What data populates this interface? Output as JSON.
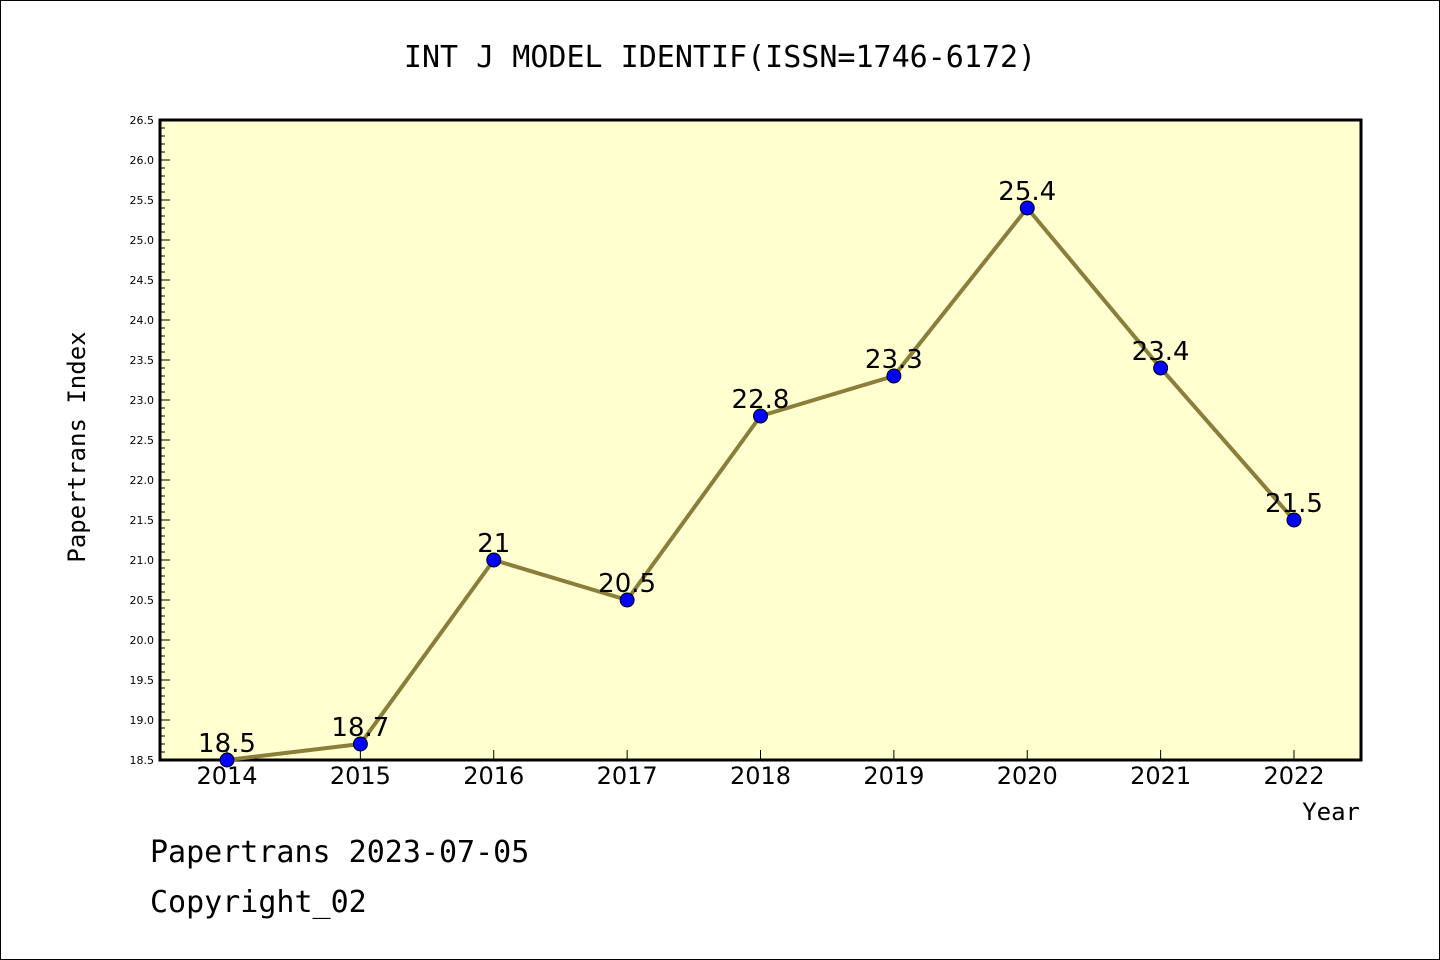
{
  "chart_data": {
    "type": "line",
    "title": "INT J MODEL IDENTIF(ISSN=1746-6172)",
    "xlabel": "Year",
    "ylabel": "Papertrans Index",
    "categories": [
      "2014",
      "2015",
      "2016",
      "2017",
      "2018",
      "2019",
      "2020",
      "2021",
      "2022"
    ],
    "values": [
      18.5,
      18.7,
      21,
      20.5,
      22.8,
      23.3,
      25.4,
      23.4,
      21.5
    ],
    "data_labels": [
      "18.5",
      "18.7",
      "21",
      "20.5",
      "22.8",
      "23.3",
      "25.4",
      "23.4",
      "21.5"
    ],
    "ylim": [
      18.5,
      26.5
    ],
    "yticks": [
      "18.5",
      "19.0",
      "19.5",
      "20.0",
      "20.5",
      "21.0",
      "21.5",
      "22.0",
      "22.5",
      "23.0",
      "23.5",
      "24.0",
      "24.5",
      "25.0",
      "25.5",
      "26.0",
      "26.5"
    ],
    "grid": false,
    "colors": {
      "plot_background": "#ffffd0",
      "line": "#8b7d3a",
      "marker": "#0000ff"
    }
  },
  "footer": {
    "line1": "Papertrans 2023-07-05",
    "line2": "Copyright_02"
  }
}
